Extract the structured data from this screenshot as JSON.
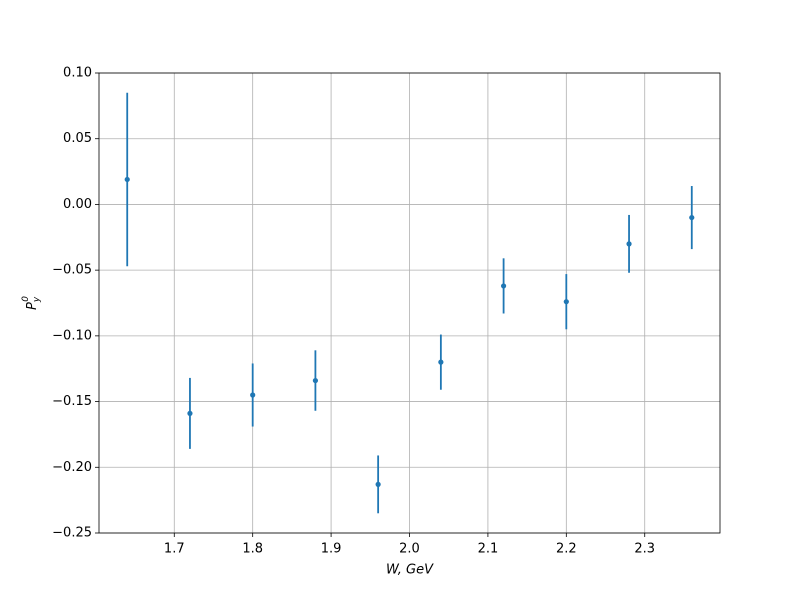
{
  "chart_data": {
    "type": "errorbar",
    "xlabel": "W, GeV",
    "ylabel": {
      "base": "P",
      "sub": "y",
      "sup": "0"
    },
    "xlim": [
      1.604,
      2.396
    ],
    "ylim": [
      -0.25,
      0.1
    ],
    "xticks": [
      1.7,
      1.8,
      1.9,
      {
        "value": 2.0,
        "label": "2.0"
      },
      2.1,
      2.2,
      2.3
    ],
    "yticks": [
      {
        "value": -0.25,
        "label": "−0.25"
      },
      {
        "value": -0.2,
        "label": "−0.20"
      },
      {
        "value": -0.15,
        "label": "−0.15"
      },
      {
        "value": -0.1,
        "label": "−0.10"
      },
      {
        "value": -0.05,
        "label": "−0.05"
      },
      {
        "value": 0,
        "label": "0.00"
      },
      {
        "value": 0.05,
        "label": "0.05"
      },
      {
        "value": 0.1,
        "label": "0.10"
      }
    ],
    "grid": true,
    "series": [
      {
        "color": "#1f77b4",
        "x": [
          1.64,
          1.72,
          1.8,
          1.88,
          1.96,
          2.04,
          2.12,
          2.2,
          2.28,
          2.36
        ],
        "values": [
          0.019,
          -0.159,
          -0.145,
          -0.134,
          -0.213,
          -0.12,
          -0.062,
          -0.074,
          -0.03,
          -0.01
        ],
        "errors": [
          0.066,
          0.027,
          0.024,
          0.023,
          0.022,
          0.021,
          0.021,
          0.021,
          0.022,
          0.024
        ]
      }
    ]
  }
}
